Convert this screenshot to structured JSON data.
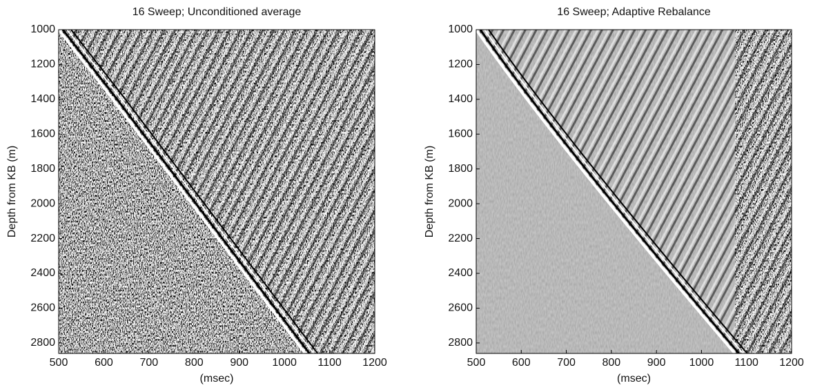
{
  "chart_data": [
    {
      "type": "image",
      "title": "16 Sweep; Unconditioned average",
      "x_label": "(msec)",
      "y_label": "Depth from KB (m)",
      "xlim": [
        500,
        1200
      ],
      "xticks": [
        500,
        600,
        700,
        800,
        900,
        1000,
        1100,
        1200
      ],
      "ylim": [
        1000,
        2860
      ],
      "yticks": [
        1000,
        1200,
        1400,
        1600,
        1800,
        2000,
        2200,
        2400,
        2600,
        2800
      ]
    },
    {
      "type": "image",
      "title": "16 Sweep; Adaptive Rebalance",
      "x_label": "(msec)",
      "y_label": "Depth from KB (m)",
      "xlim": [
        500,
        1200
      ],
      "xticks": [
        500,
        600,
        700,
        800,
        900,
        1000,
        1100,
        1200
      ],
      "ylim": [
        1000,
        2860
      ],
      "yticks": [
        1000,
        1200,
        1400,
        1600,
        1800,
        2000,
        2200,
        2400,
        2600,
        2800
      ]
    }
  ]
}
